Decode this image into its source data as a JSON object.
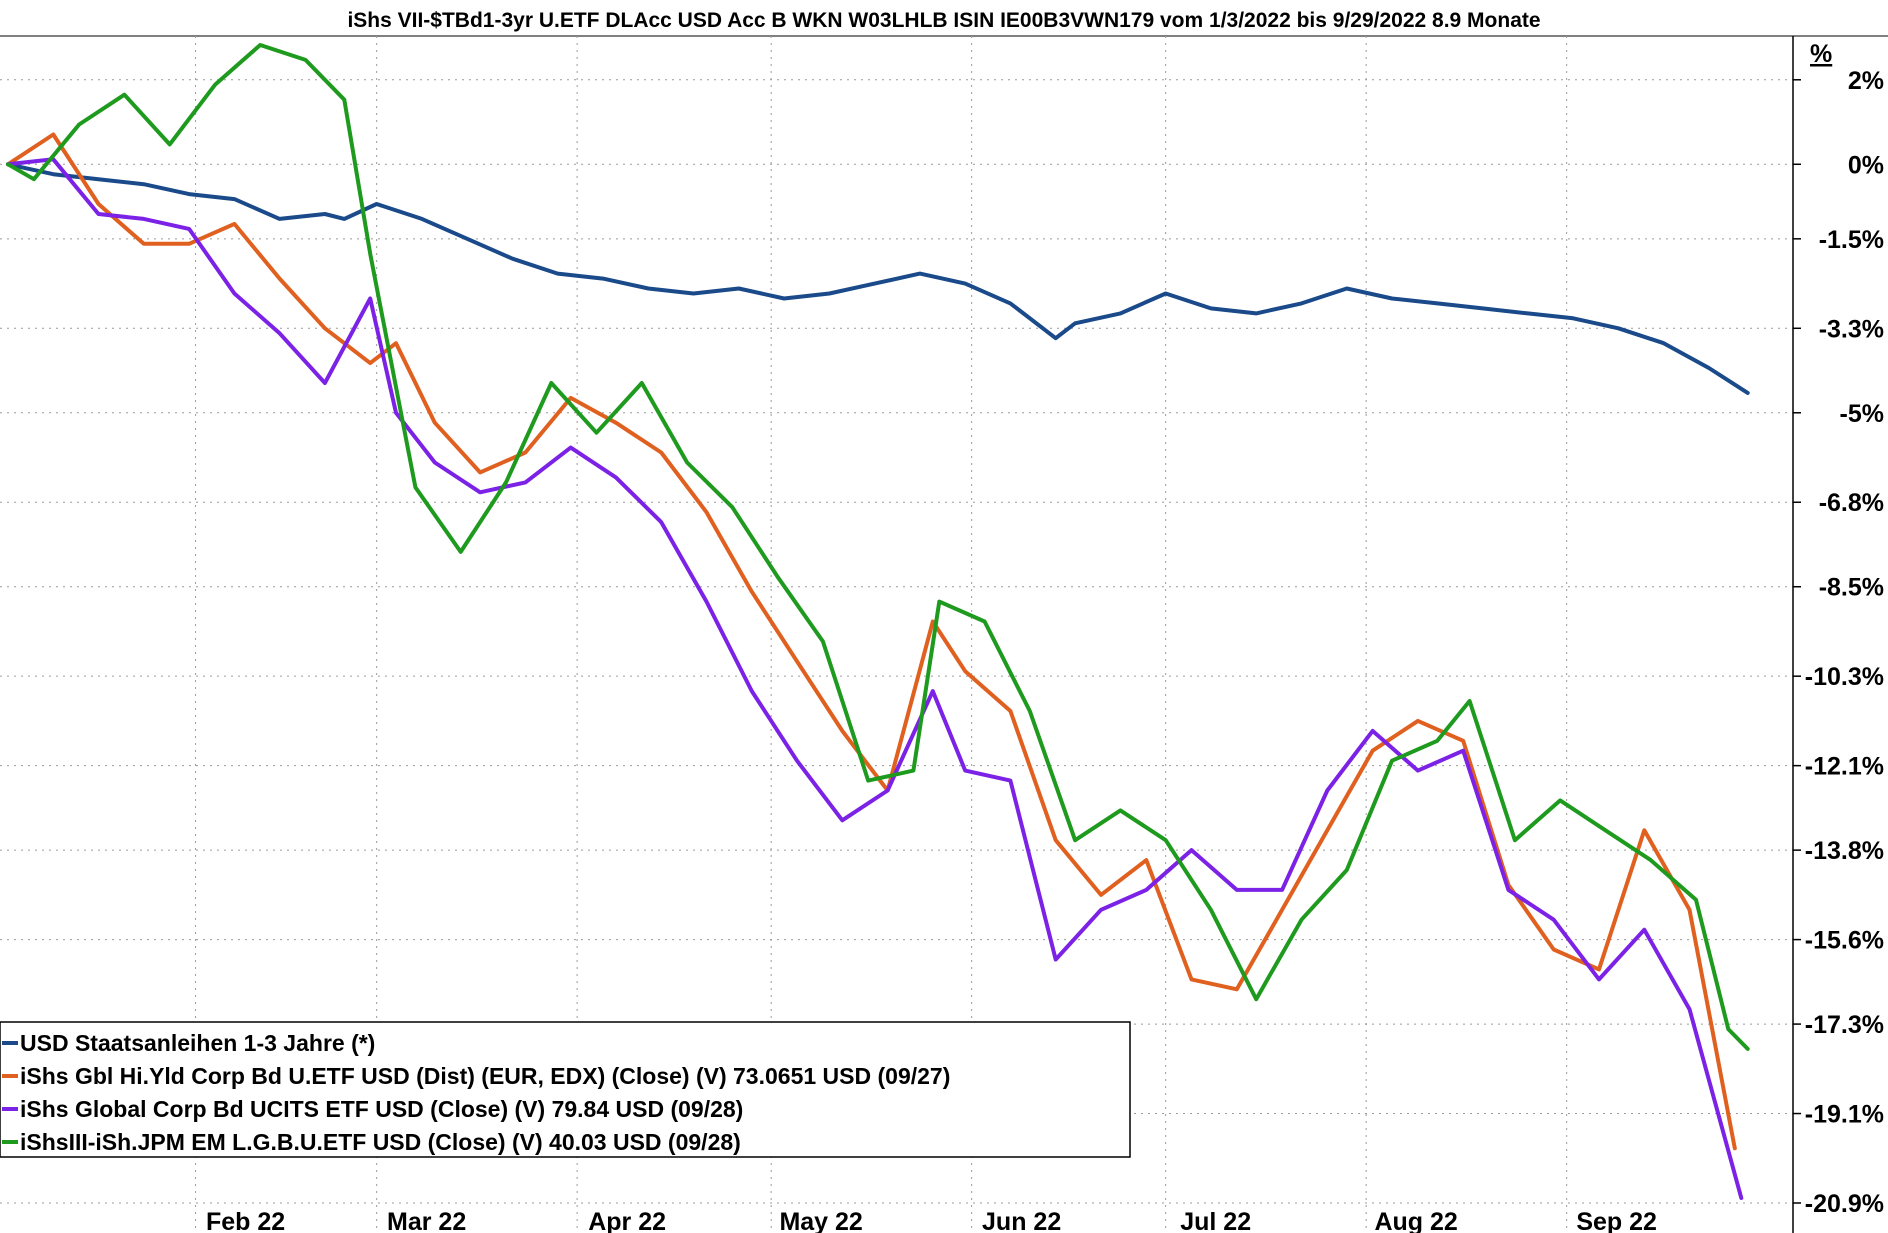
{
  "chart_data": {
    "type": "line",
    "title": "iShs VII-$TBd1-3yr U.ETF DLAcc USD Acc B WKN W03LHLB ISIN IE00B3VWN179 vom 1/3/2022 bis 9/29/2022 8.9 Monate",
    "y_unit_label": "%",
    "yticks": [
      "2%",
      "0%",
      "-1.5%",
      "-3.3%",
      "-5%",
      "-6.8%",
      "-8.5%",
      "-10.3%",
      "-12.1%",
      "-13.8%",
      "-15.6%",
      "-17.3%",
      "-19.1%",
      "-20.9%"
    ],
    "ytick_values": [
      1.7,
      0,
      -1.5,
      -3.3,
      -5,
      -6.8,
      -8.5,
      -10.3,
      -12.1,
      -13.8,
      -15.6,
      -17.3,
      -19.1,
      -20.9
    ],
    "xticks": [
      "Feb 22",
      "Mar 22",
      "Apr 22",
      "May 22",
      "Jun 22",
      "Jul 22",
      "Aug 22",
      "Sep 22"
    ],
    "xtick_dates": [
      "2022-02-01",
      "2022-03-01",
      "2022-04-01",
      "2022-05-01",
      "2022-06-01",
      "2022-07-01",
      "2022-08-01",
      "2022-09-01"
    ],
    "x_range": [
      "2022-01-03",
      "2022-10-06"
    ],
    "ylim": [
      -20.9,
      2.4
    ],
    "grid": true,
    "legend_position": "bottom-left",
    "series": [
      {
        "name": "USD Staatsanleihen 1-3 Jahre (*)",
        "color": "#1a4a8a",
        "points": [
          [
            "2022-01-03",
            0
          ],
          [
            "2022-01-10",
            -0.2
          ],
          [
            "2022-01-17",
            -0.3
          ],
          [
            "2022-01-24",
            -0.4
          ],
          [
            "2022-01-31",
            -0.6
          ],
          [
            "2022-02-07",
            -0.7
          ],
          [
            "2022-02-14",
            -1.1
          ],
          [
            "2022-02-21",
            -1.0
          ],
          [
            "2022-02-24",
            -1.1
          ],
          [
            "2022-03-01",
            -0.8
          ],
          [
            "2022-03-08",
            -1.1
          ],
          [
            "2022-03-15",
            -1.5
          ],
          [
            "2022-03-22",
            -1.9
          ],
          [
            "2022-03-29",
            -2.2
          ],
          [
            "2022-04-05",
            -2.3
          ],
          [
            "2022-04-12",
            -2.5
          ],
          [
            "2022-04-19",
            -2.6
          ],
          [
            "2022-04-26",
            -2.5
          ],
          [
            "2022-05-03",
            -2.7
          ],
          [
            "2022-05-10",
            -2.6
          ],
          [
            "2022-05-17",
            -2.4
          ],
          [
            "2022-05-24",
            -2.2
          ],
          [
            "2022-05-31",
            -2.4
          ],
          [
            "2022-06-07",
            -2.8
          ],
          [
            "2022-06-14",
            -3.5
          ],
          [
            "2022-06-17",
            -3.2
          ],
          [
            "2022-06-24",
            -3.0
          ],
          [
            "2022-07-01",
            -2.6
          ],
          [
            "2022-07-08",
            -2.9
          ],
          [
            "2022-07-15",
            -3.0
          ],
          [
            "2022-07-22",
            -2.8
          ],
          [
            "2022-07-29",
            -2.5
          ],
          [
            "2022-08-05",
            -2.7
          ],
          [
            "2022-08-12",
            -2.8
          ],
          [
            "2022-08-19",
            -2.9
          ],
          [
            "2022-08-26",
            -3.0
          ],
          [
            "2022-09-02",
            -3.1
          ],
          [
            "2022-09-09",
            -3.3
          ],
          [
            "2022-09-16",
            -3.6
          ],
          [
            "2022-09-23",
            -4.1
          ],
          [
            "2022-09-29",
            -4.6
          ]
        ]
      },
      {
        "name": "iShs Gbl Hi.Yld Corp Bd U.ETF USD (Dist) (EUR, EDX) (Close) (V) 73.0651 USD (09/27)",
        "color": "#e06020",
        "points": [
          [
            "2022-01-03",
            0
          ],
          [
            "2022-01-10",
            0.6
          ],
          [
            "2022-01-17",
            -0.8
          ],
          [
            "2022-01-24",
            -1.6
          ],
          [
            "2022-01-31",
            -1.6
          ],
          [
            "2022-02-07",
            -1.2
          ],
          [
            "2022-02-14",
            -2.3
          ],
          [
            "2022-02-21",
            -3.3
          ],
          [
            "2022-02-28",
            -4.0
          ],
          [
            "2022-03-04",
            -3.6
          ],
          [
            "2022-03-10",
            -5.2
          ],
          [
            "2022-03-17",
            -6.2
          ],
          [
            "2022-03-24",
            -5.8
          ],
          [
            "2022-03-31",
            -4.7
          ],
          [
            "2022-04-07",
            -5.2
          ],
          [
            "2022-04-14",
            -5.8
          ],
          [
            "2022-04-21",
            -7.0
          ],
          [
            "2022-04-28",
            -8.6
          ],
          [
            "2022-05-05",
            -10.0
          ],
          [
            "2022-05-12",
            -11.4
          ],
          [
            "2022-05-19",
            -12.6
          ],
          [
            "2022-05-26",
            -9.2
          ],
          [
            "2022-05-31",
            -10.2
          ],
          [
            "2022-06-07",
            -11.0
          ],
          [
            "2022-06-14",
            -13.6
          ],
          [
            "2022-06-21",
            -14.7
          ],
          [
            "2022-06-28",
            -14.0
          ],
          [
            "2022-07-05",
            -16.4
          ],
          [
            "2022-07-12",
            -16.6
          ],
          [
            "2022-07-19",
            -15.0
          ],
          [
            "2022-07-26",
            -13.4
          ],
          [
            "2022-08-02",
            -11.8
          ],
          [
            "2022-08-09",
            -11.2
          ],
          [
            "2022-08-16",
            -11.6
          ],
          [
            "2022-08-23",
            -14.5
          ],
          [
            "2022-08-30",
            -15.8
          ],
          [
            "2022-09-06",
            -16.2
          ],
          [
            "2022-09-13",
            -13.4
          ],
          [
            "2022-09-20",
            -15.0
          ],
          [
            "2022-09-27",
            -19.8
          ]
        ]
      },
      {
        "name": "iShs Global Corp Bd UCITS ETF USD (Close) (V) 79.84 USD (09/28)",
        "color": "#7b22e6",
        "points": [
          [
            "2022-01-03",
            0
          ],
          [
            "2022-01-10",
            0.1
          ],
          [
            "2022-01-17",
            -1.0
          ],
          [
            "2022-01-24",
            -1.1
          ],
          [
            "2022-01-31",
            -1.3
          ],
          [
            "2022-02-07",
            -2.6
          ],
          [
            "2022-02-14",
            -3.4
          ],
          [
            "2022-02-21",
            -4.4
          ],
          [
            "2022-02-28",
            -2.7
          ],
          [
            "2022-03-04",
            -5.0
          ],
          [
            "2022-03-10",
            -6.0
          ],
          [
            "2022-03-17",
            -6.6
          ],
          [
            "2022-03-24",
            -6.4
          ],
          [
            "2022-03-31",
            -5.7
          ],
          [
            "2022-04-07",
            -6.3
          ],
          [
            "2022-04-14",
            -7.2
          ],
          [
            "2022-04-21",
            -8.8
          ],
          [
            "2022-04-28",
            -10.6
          ],
          [
            "2022-05-05",
            -12.0
          ],
          [
            "2022-05-12",
            -13.2
          ],
          [
            "2022-05-19",
            -12.6
          ],
          [
            "2022-05-26",
            -10.6
          ],
          [
            "2022-05-31",
            -12.2
          ],
          [
            "2022-06-07",
            -12.4
          ],
          [
            "2022-06-14",
            -16.0
          ],
          [
            "2022-06-21",
            -15.0
          ],
          [
            "2022-06-28",
            -14.6
          ],
          [
            "2022-07-05",
            -13.8
          ],
          [
            "2022-07-12",
            -14.6
          ],
          [
            "2022-07-19",
            -14.6
          ],
          [
            "2022-07-26",
            -12.6
          ],
          [
            "2022-08-02",
            -11.4
          ],
          [
            "2022-08-09",
            -12.2
          ],
          [
            "2022-08-16",
            -11.8
          ],
          [
            "2022-08-23",
            -14.6
          ],
          [
            "2022-08-30",
            -15.2
          ],
          [
            "2022-09-06",
            -16.4
          ],
          [
            "2022-09-13",
            -15.4
          ],
          [
            "2022-09-20",
            -17.0
          ],
          [
            "2022-09-28",
            -20.8
          ]
        ]
      },
      {
        "name": "iShsIII-iSh.JPM EM L.G.B.U.ETF USD (Close) (V) 40.03 USD (09/28)",
        "color": "#1e9a1e",
        "points": [
          [
            "2022-01-03",
            0
          ],
          [
            "2022-01-07",
            -0.3
          ],
          [
            "2022-01-14",
            0.8
          ],
          [
            "2022-01-21",
            1.4
          ],
          [
            "2022-01-28",
            0.4
          ],
          [
            "2022-02-04",
            1.6
          ],
          [
            "2022-02-11",
            2.4
          ],
          [
            "2022-02-18",
            2.1
          ],
          [
            "2022-02-24",
            1.3
          ],
          [
            "2022-02-28",
            -1.8
          ],
          [
            "2022-03-07",
            -6.5
          ],
          [
            "2022-03-14",
            -7.8
          ],
          [
            "2022-03-21",
            -6.4
          ],
          [
            "2022-03-28",
            -4.4
          ],
          [
            "2022-04-04",
            -5.4
          ],
          [
            "2022-04-11",
            -4.4
          ],
          [
            "2022-04-18",
            -6.0
          ],
          [
            "2022-04-25",
            -6.9
          ],
          [
            "2022-05-02",
            -8.3
          ],
          [
            "2022-05-09",
            -9.6
          ],
          [
            "2022-05-16",
            -12.4
          ],
          [
            "2022-05-23",
            -12.2
          ],
          [
            "2022-05-27",
            -8.8
          ],
          [
            "2022-06-03",
            -9.2
          ],
          [
            "2022-06-10",
            -11.0
          ],
          [
            "2022-06-17",
            -13.6
          ],
          [
            "2022-06-24",
            -13.0
          ],
          [
            "2022-07-01",
            -13.6
          ],
          [
            "2022-07-08",
            -15.0
          ],
          [
            "2022-07-15",
            -16.8
          ],
          [
            "2022-07-22",
            -15.2
          ],
          [
            "2022-07-29",
            -14.2
          ],
          [
            "2022-08-05",
            -12.0
          ],
          [
            "2022-08-12",
            -11.6
          ],
          [
            "2022-08-17",
            -10.8
          ],
          [
            "2022-08-24",
            -13.6
          ],
          [
            "2022-08-31",
            -12.8
          ],
          [
            "2022-09-07",
            -13.4
          ],
          [
            "2022-09-14",
            -14.0
          ],
          [
            "2022-09-21",
            -14.8
          ],
          [
            "2022-09-26",
            -17.4
          ],
          [
            "2022-09-29",
            -17.8
          ]
        ]
      }
    ]
  }
}
